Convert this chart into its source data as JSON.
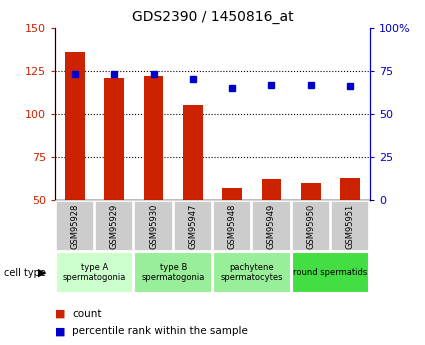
{
  "title": "GDS2390 / 1450816_at",
  "samples": [
    "GSM95928",
    "GSM95929",
    "GSM95930",
    "GSM95947",
    "GSM95948",
    "GSM95949",
    "GSM95950",
    "GSM95951"
  ],
  "counts": [
    136,
    121,
    122,
    105,
    57,
    62,
    60,
    63
  ],
  "percentile_ranks": [
    73,
    73,
    73,
    70,
    65,
    67,
    67,
    66
  ],
  "ylim_left": [
    50,
    150
  ],
  "ylim_right": [
    0,
    100
  ],
  "yticks_left": [
    50,
    75,
    100,
    125,
    150
  ],
  "yticks_right": [
    0,
    25,
    50,
    75,
    100
  ],
  "ytick_right_labels": [
    "0",
    "25",
    "50",
    "75",
    "100%"
  ],
  "bar_color": "#cc2200",
  "dot_color": "#0000cc",
  "bg_color": "#ffffff",
  "cell_types": [
    {
      "label": "type A\nspermatogonia",
      "start": 0,
      "end": 2,
      "color": "#ccffcc"
    },
    {
      "label": "type B\nspermatogonia",
      "start": 2,
      "end": 4,
      "color": "#99ee99"
    },
    {
      "label": "pachytene\nspermatocytes",
      "start": 4,
      "end": 6,
      "color": "#99ee99"
    },
    {
      "label": "round spermatids",
      "start": 6,
      "end": 8,
      "color": "#44dd44"
    }
  ],
  "sample_box_color": "#cccccc",
  "legend_count_color": "#cc2200",
  "legend_pct_color": "#0000cc",
  "cell_type_label": "cell type",
  "legend_count_label": "count",
  "legend_pct_label": "percentile rank within the sample"
}
